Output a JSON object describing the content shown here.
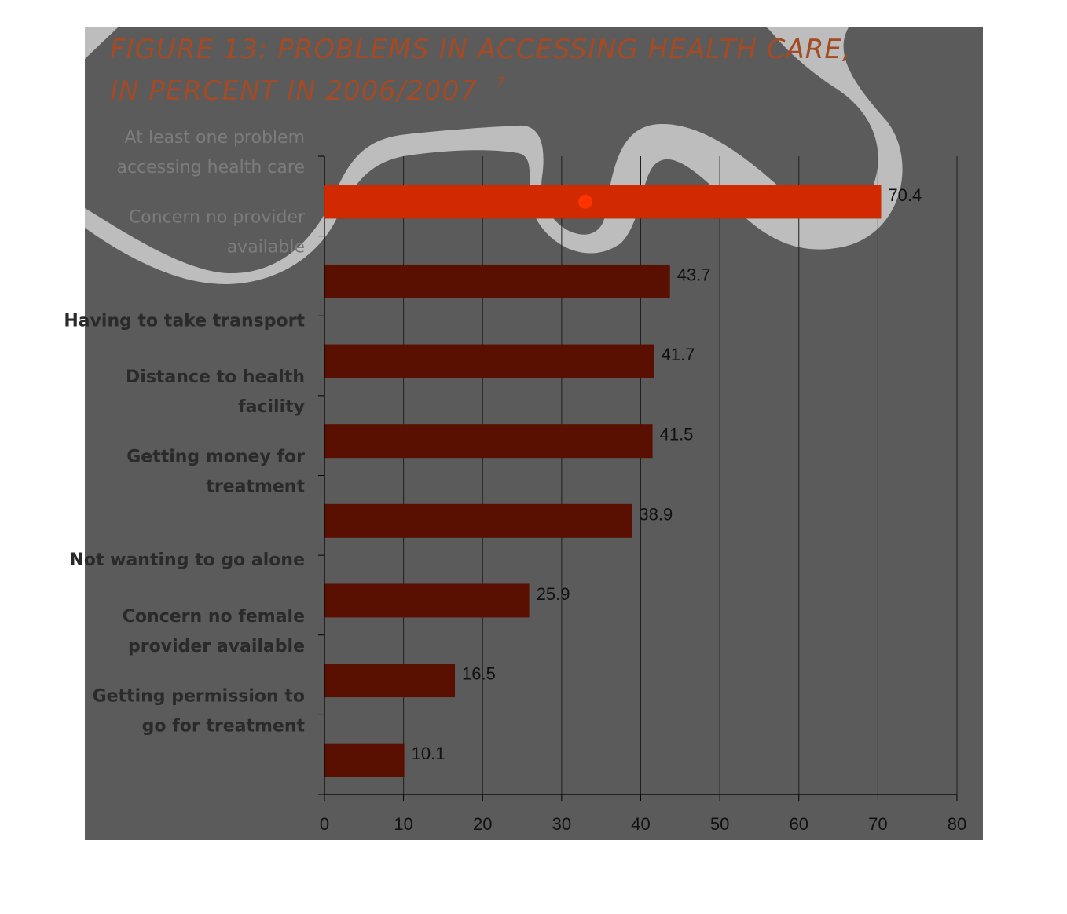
{
  "colors": {
    "panel": "#5b5b5b",
    "swoosh": "#bdbdbd",
    "bar": "#5a1000",
    "highlight": "#ff3300",
    "title": "#a44a24",
    "gridline": "#1e1e1e"
  },
  "chart_data": {
    "type": "bar",
    "orientation": "horizontal",
    "title": "FIGURE 13:  PROBLEMS IN ACCESSING HEALTH CARE,",
    "subtitle": "IN PERCENT  IN 2006/2007",
    "title_superscript": "7",
    "categories": [
      [
        "At least one problem",
        "accessing health care"
      ],
      [
        "Concern no provider",
        "available"
      ],
      [
        "Having to take transport"
      ],
      [
        "Distance to health",
        "facility"
      ],
      [
        "Getting money for",
        "treatment"
      ],
      [
        "Not wanting to go alone"
      ],
      [
        "Concern no female",
        "provider available"
      ],
      [
        "Getting permission to",
        "go for treatment"
      ]
    ],
    "values": [
      70.4,
      43.7,
      41.7,
      41.5,
      38.9,
      25.9,
      16.5,
      10.1
    ],
    "value_labels": [
      "70.4",
      "43.7",
      "41.7",
      "41.5",
      "38.9",
      "25.9",
      "16.5",
      "10.1"
    ],
    "xlim": [
      0,
      80
    ],
    "x_ticks": [
      "0",
      "10",
      "20",
      "30",
      "40",
      "50",
      "60",
      "70",
      "80"
    ],
    "xlabel": "",
    "ylabel": "",
    "grid": true,
    "highlighted_index": 0
  }
}
